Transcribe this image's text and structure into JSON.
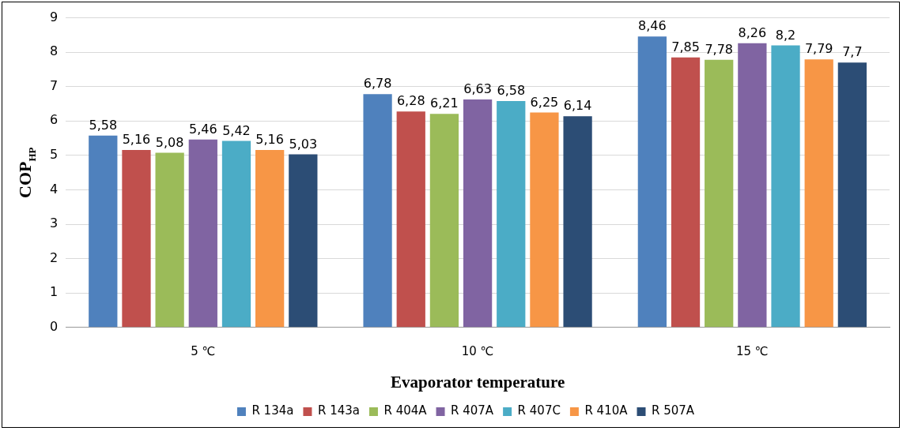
{
  "chart_data": {
    "type": "bar",
    "xlabel": "Evaporator temperature",
    "ylabel": "COP$_{HP}$",
    "categories": [
      "5 ℃",
      "10 ℃",
      "15 ℃"
    ],
    "ylim": [
      0,
      9
    ],
    "yticks": [
      0,
      1,
      2,
      3,
      4,
      5,
      6,
      7,
      8,
      9
    ],
    "grid": "y",
    "legend": "bottom",
    "series": [
      {
        "name": "R 134a",
        "color": "#4f81bd",
        "values": [
          5.58,
          6.78,
          8.46
        ],
        "value_labels": [
          "5,58",
          "6,78",
          "8,46"
        ]
      },
      {
        "name": "R 143a",
        "color": "#c0504d",
        "values": [
          5.16,
          6.28,
          7.85
        ],
        "value_labels": [
          "5,16",
          "6,28",
          "7,85"
        ]
      },
      {
        "name": "R 404A",
        "color": "#9bbb59",
        "values": [
          5.08,
          6.21,
          7.78
        ],
        "value_labels": [
          "5,08",
          "6,21",
          "7,78"
        ]
      },
      {
        "name": "R 407A",
        "color": "#8064a2",
        "values": [
          5.46,
          6.63,
          8.26
        ],
        "value_labels": [
          "5,46",
          "6,63",
          "8,26"
        ]
      },
      {
        "name": "R 407C",
        "color": "#4bacc6",
        "values": [
          5.42,
          6.58,
          8.2
        ],
        "value_labels": [
          "5,42",
          "6,58",
          "8,2"
        ]
      },
      {
        "name": "R 410A",
        "color": "#f79646",
        "values": [
          5.16,
          6.25,
          7.79
        ],
        "value_labels": [
          "5,16",
          "6,25",
          "7,79"
        ]
      },
      {
        "name": "R 507A",
        "color": "#2c4d75",
        "values": [
          5.03,
          6.14,
          7.7
        ],
        "value_labels": [
          "5,03",
          "6,14",
          "7,7"
        ]
      }
    ]
  }
}
